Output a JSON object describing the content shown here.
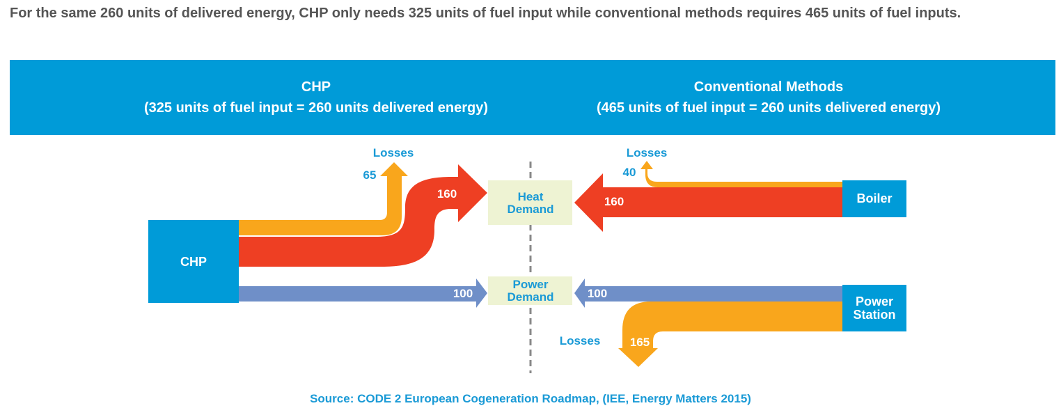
{
  "intro": "For the same 260 units of delivered energy, CHP only needs 325 units of fuel input while conventional methods requires 465 units of fuel inputs.",
  "banner": {
    "left": {
      "title": "CHP",
      "subtitle": "(325 units of fuel input = 260 units delivered energy)"
    },
    "right": {
      "title": "Conventional Methods",
      "subtitle": "(465 units of fuel input = 260 units delivered energy)"
    }
  },
  "chp": {
    "source_label": "CHP",
    "losses_label": "Losses",
    "losses_value": "65",
    "heat_value": "160",
    "power_value": "100"
  },
  "demand": {
    "heat_line1": "Heat",
    "heat_line2": "Demand",
    "power_line1": "Power",
    "power_line2": "Demand"
  },
  "conventional": {
    "boiler_label": "Boiler",
    "boiler_losses_label": "Losses",
    "boiler_losses_value": "40",
    "boiler_heat_value": "160",
    "station_line1": "Power",
    "station_line2": "Station",
    "station_power_value": "100",
    "station_losses_label": "Losses",
    "station_losses_value": "165"
  },
  "source": "Source: CODE 2 European Cogeneration Roadmap, (IEE, Energy Matters 2015)",
  "colors": {
    "blue_box": "#009bd8",
    "heat_red": "#ee3f23",
    "loss_orange": "#f9a61c",
    "power_blue": "#6f8fc8",
    "demand_fill": "#eef3d3",
    "label_blue": "#1a9ad6",
    "divider": "#888888"
  }
}
